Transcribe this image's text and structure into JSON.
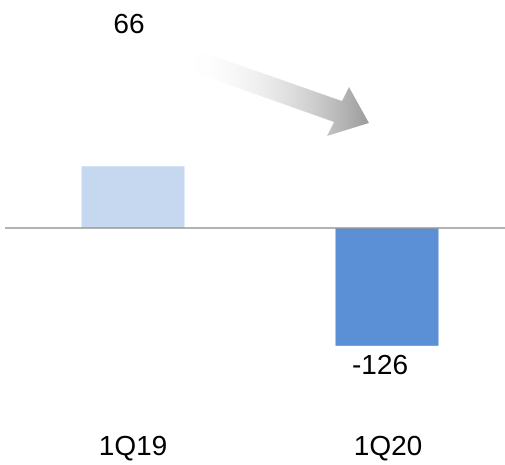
{
  "chart_data": {
    "type": "bar",
    "categories": [
      "1Q19",
      "1Q20"
    ],
    "values": [
      66,
      -126
    ],
    "data_labels": [
      "66",
      "-126"
    ],
    "colors": [
      "#c5d8f0",
      "#5b8fd6"
    ],
    "axis_color": "#999999",
    "trend_arrow": "down",
    "title": "",
    "xlabel": "",
    "ylabel": "",
    "ylim": [
      -180,
      200
    ],
    "grid": false,
    "legend": "none"
  }
}
